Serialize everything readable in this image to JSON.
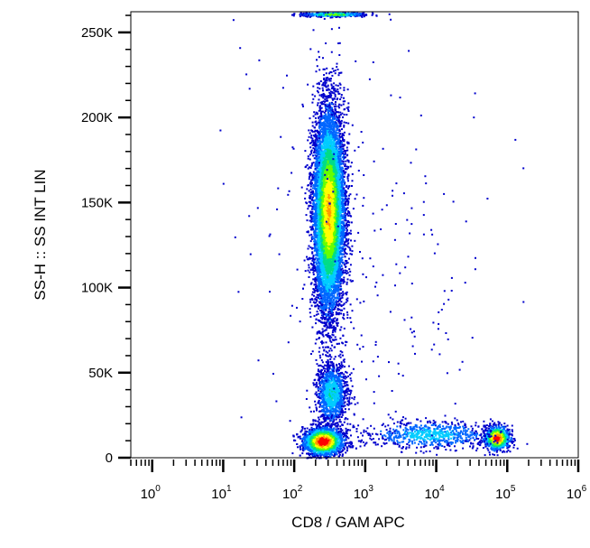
{
  "chart_data": {
    "type": "scatter",
    "title": "",
    "xlabel": "CD8 / GAM APC",
    "ylabel": "SS-H :: SS INT LIN",
    "x_scale": "log",
    "xlim": [
      0.5,
      1000000
    ],
    "ylim": [
      0,
      262144
    ],
    "grid": false,
    "legend": "none",
    "x_ticks": [
      {
        "value": 1,
        "base": "10",
        "exp": "0"
      },
      {
        "value": 10,
        "base": "10",
        "exp": "1"
      },
      {
        "value": 100,
        "base": "10",
        "exp": "2"
      },
      {
        "value": 1000,
        "base": "10",
        "exp": "3"
      },
      {
        "value": 10000,
        "base": "10",
        "exp": "4"
      },
      {
        "value": 100000,
        "base": "10",
        "exp": "5"
      },
      {
        "value": 1000000,
        "base": "10",
        "exp": "6"
      }
    ],
    "y_ticks": [
      {
        "value": 0,
        "label": "0"
      },
      {
        "value": 50000,
        "label": "50K"
      },
      {
        "value": 100000,
        "label": "100K"
      },
      {
        "value": 150000,
        "label": "150K"
      },
      {
        "value": 200000,
        "label": "200K"
      },
      {
        "value": 250000,
        "label": "250K"
      }
    ],
    "colormap": [
      "#0000cc",
      "#0066ff",
      "#00ccff",
      "#00dd88",
      "#66ff00",
      "#ffff00",
      "#ff9900",
      "#ff0000"
    ],
    "populations": [
      {
        "name_hint": "cd8-negative-granulocytes",
        "x_center": 300,
        "x_log_sd": 0.11,
        "y_center": 145000,
        "y_sd": 30000,
        "count": 9000,
        "peak": 0.75
      },
      {
        "name_hint": "cd8-negative-monocytes",
        "x_center": 330,
        "x_log_sd": 0.11,
        "y_center": 38000,
        "y_sd": 9000,
        "count": 1200,
        "peak": 0.35
      },
      {
        "name_hint": "cd8-negative-lymphocytes",
        "x_center": 250,
        "x_log_sd": 0.14,
        "y_center": 10000,
        "y_sd": 4000,
        "count": 3500,
        "peak": 1.0
      },
      {
        "name_hint": "cd8-positive-lymphocytes",
        "x_center": 70000,
        "x_log_sd": 0.09,
        "y_center": 12000,
        "y_sd": 3500,
        "count": 900,
        "peak": 0.95
      },
      {
        "name_hint": "intermediate-band",
        "x_center": 8000,
        "x_log_sd": 0.45,
        "y_center": 14000,
        "y_sd": 4000,
        "count": 700,
        "peak": 0.3
      },
      {
        "name_hint": "saturated-top-events",
        "x_center": 350,
        "x_log_sd": 0.22,
        "y_center": 261000,
        "y_sd": 600,
        "count": 500,
        "peak": 0.6
      },
      {
        "name_hint": "sparse-background",
        "x_center": 1000,
        "x_log_sd": 0.9,
        "y_center": 110000,
        "y_sd": 70000,
        "count": 250,
        "peak": 0.05
      }
    ]
  }
}
